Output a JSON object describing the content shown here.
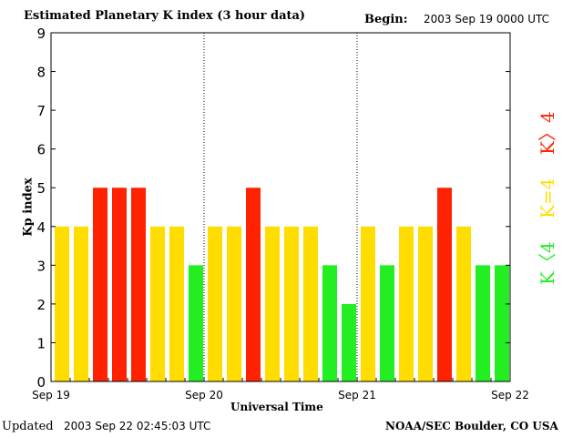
{
  "header": {
    "title": "Estimated Planetary K index (3 hour data)",
    "begin_label": "Begin:",
    "begin_value": "2003 Sep 19 0000 UTC"
  },
  "footer": {
    "updated_label": "Updated",
    "updated_value": "2003 Sep 22 02:45:03 UTC",
    "credit": "NOAA/SEC Boulder, CO USA"
  },
  "legend": {
    "high": "K〉4",
    "equal": "K=4",
    "low": "K〈4"
  },
  "colors": {
    "high": "#ff2200",
    "equal": "#ffdd00",
    "low": "#22ee22",
    "axis": "#000000"
  },
  "chart_data": {
    "type": "bar",
    "title": "Estimated Planetary K index (3 hour data)",
    "xlabel": "Universal Time",
    "ylabel": "Kp index",
    "ylim": [
      0,
      9
    ],
    "yticks": [
      0,
      1,
      2,
      3,
      4,
      5,
      6,
      7,
      8,
      9
    ],
    "xtick_labels": [
      "Sep 19",
      "Sep 20",
      "Sep 21",
      "Sep 22"
    ],
    "day_separators": [
      "Sep 20",
      "Sep 21"
    ],
    "grid": false,
    "categories": [
      "Sep 19 00",
      "Sep 19 03",
      "Sep 19 06",
      "Sep 19 09",
      "Sep 19 12",
      "Sep 19 15",
      "Sep 19 18",
      "Sep 19 21",
      "Sep 20 00",
      "Sep 20 03",
      "Sep 20 06",
      "Sep 20 09",
      "Sep 20 12",
      "Sep 20 15",
      "Sep 20 18",
      "Sep 20 21",
      "Sep 21 00",
      "Sep 21 03",
      "Sep 21 06",
      "Sep 21 09",
      "Sep 21 12",
      "Sep 21 15",
      "Sep 21 18",
      "Sep 21 21"
    ],
    "values": [
      4,
      4,
      5,
      5,
      5,
      4,
      4,
      3,
      4,
      4,
      5,
      4,
      4,
      4,
      3,
      2,
      4,
      3,
      4,
      4,
      5,
      4,
      3,
      3
    ]
  }
}
